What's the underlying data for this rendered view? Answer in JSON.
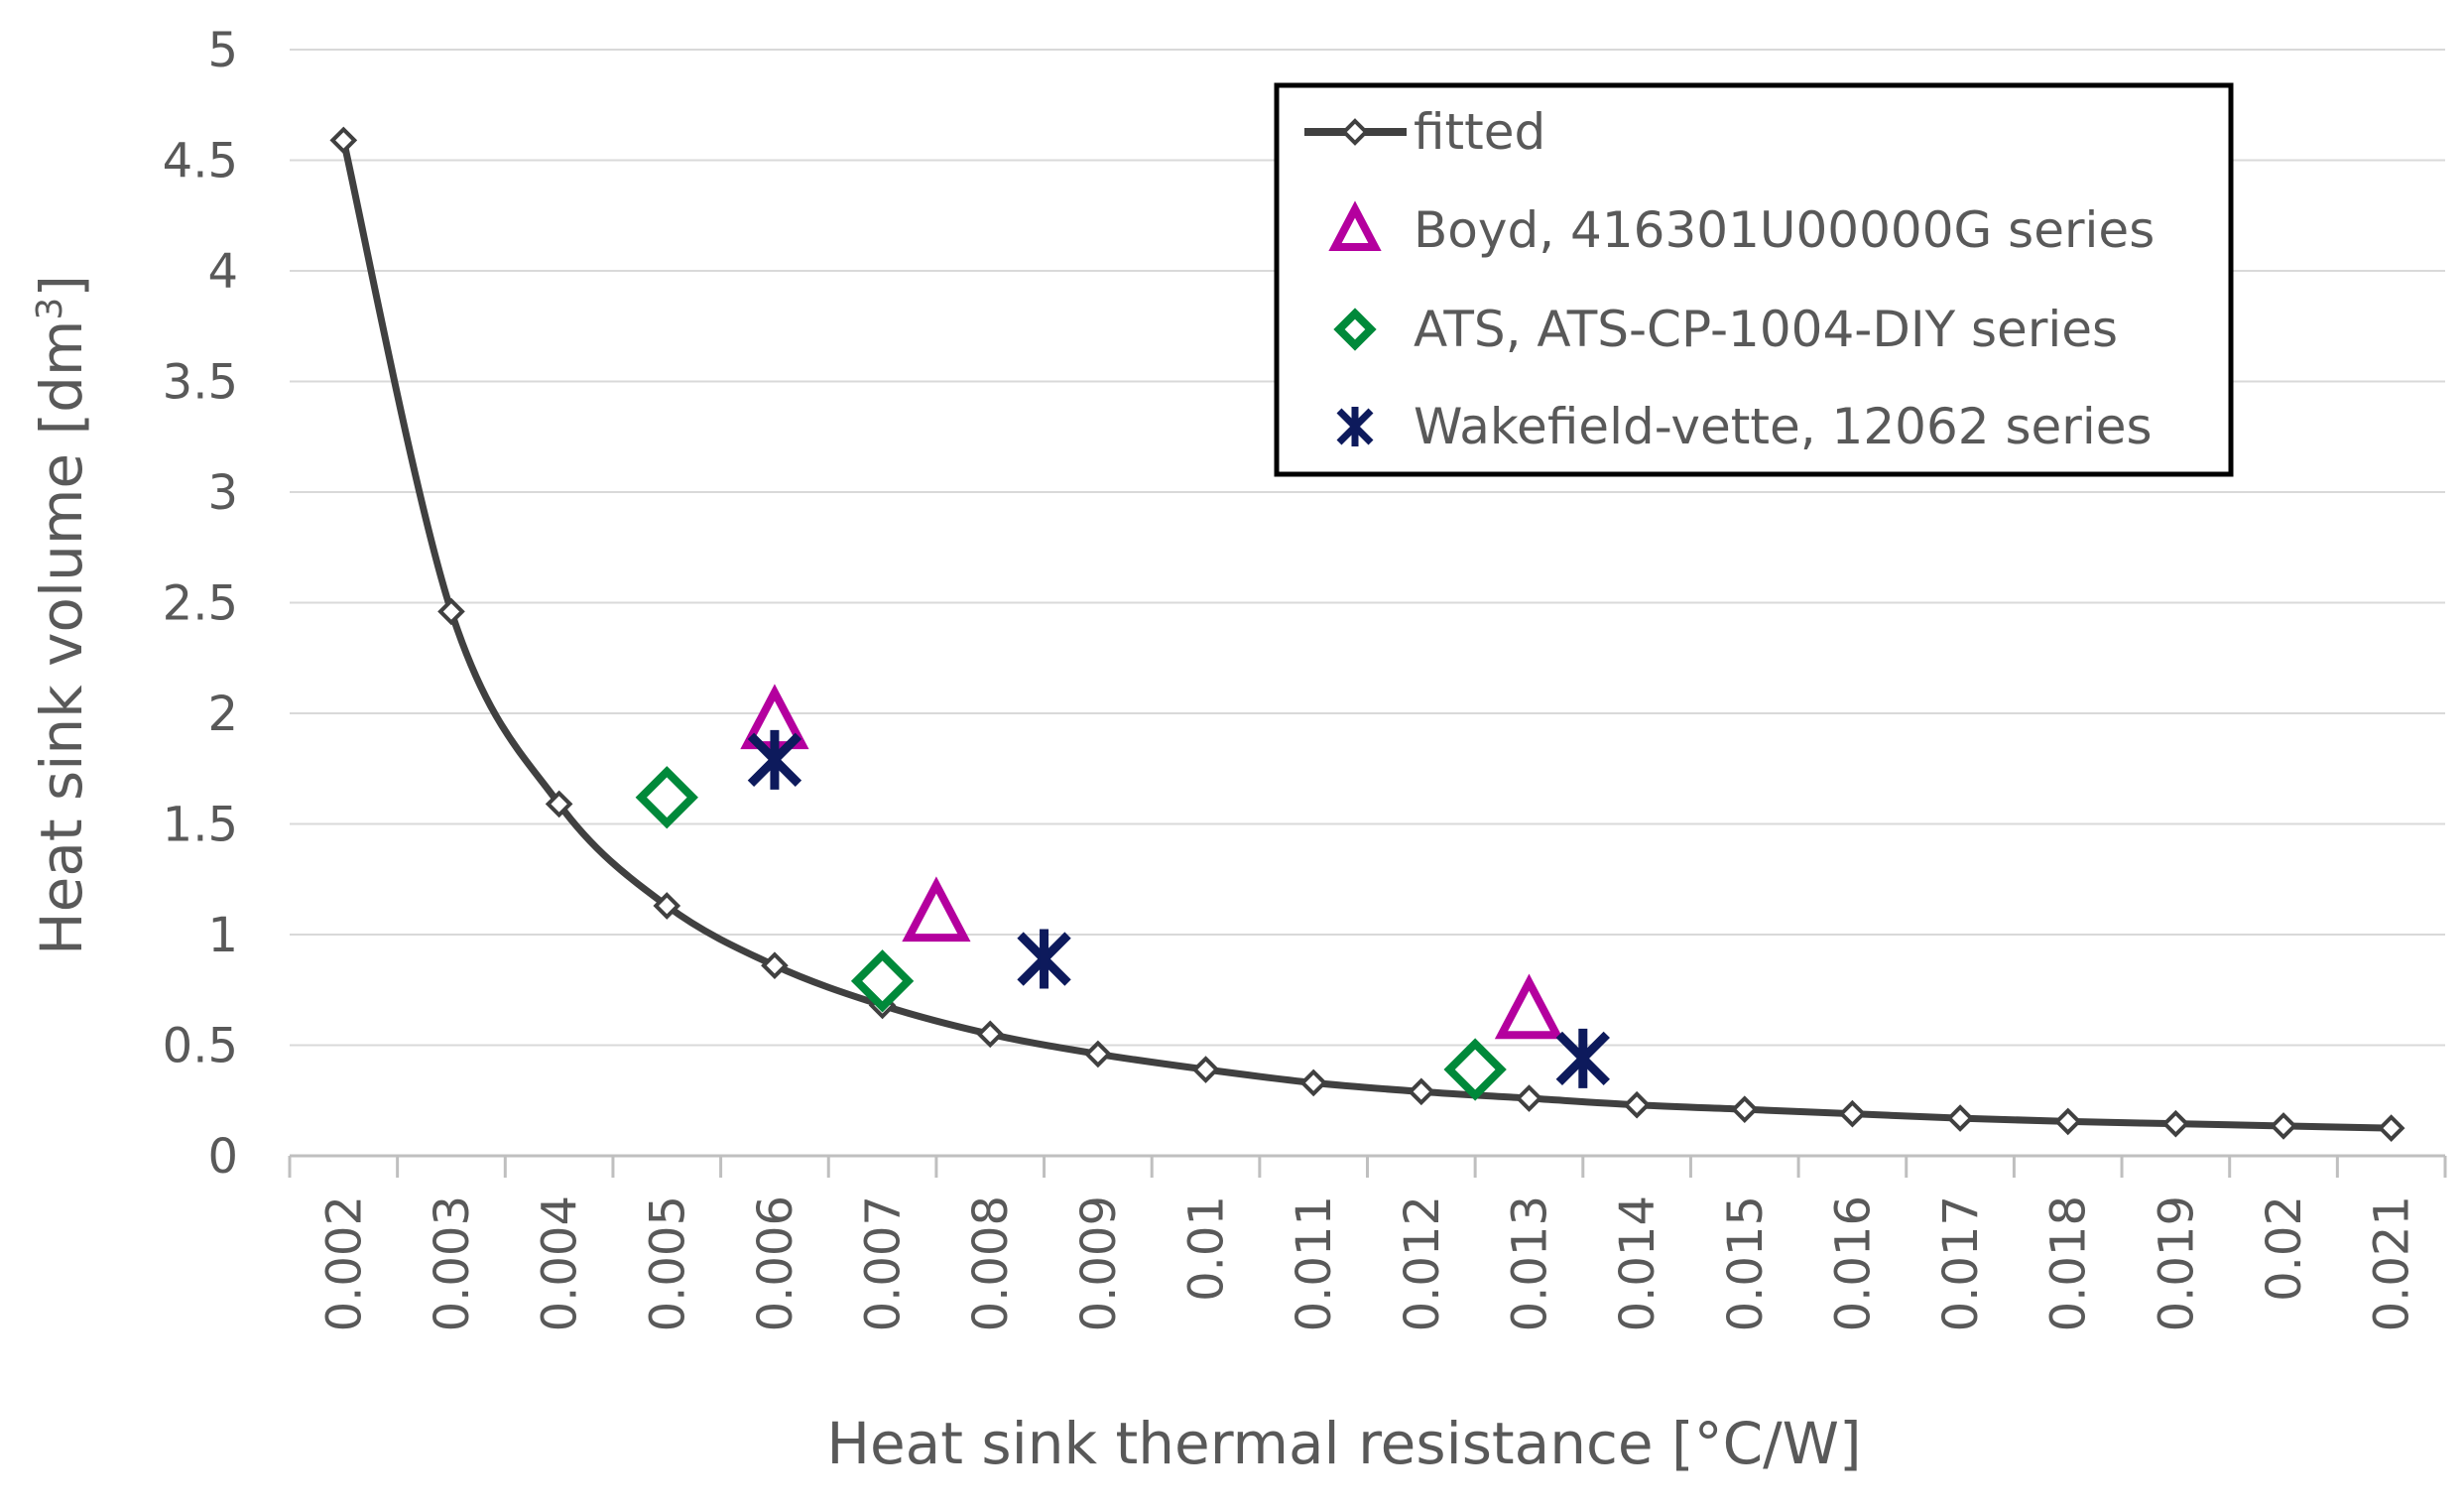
{
  "chart_data": {
    "type": "line",
    "title": "",
    "xlabel": "Heat sink thermal resistance [°C/W]",
    "ylabel_main": "Heat sink volume [dm",
    "ylabel_sup": "3",
    "ylabel_close": "]",
    "categories": [
      "0.002",
      "0.003",
      "0.004",
      "0.005",
      "0.006",
      "0.007",
      "0.008",
      "0.009",
      "0.01",
      "0.011",
      "0.012",
      "0.013",
      "0.014",
      "0.015",
      "0.016",
      "0.017",
      "0.018",
      "0.019",
      "0.02",
      "0.021"
    ],
    "y_ticks": [
      "0",
      "0.5",
      "1",
      "1.5",
      "2",
      "2.5",
      "3",
      "3.5",
      "4",
      "4.5",
      "5"
    ],
    "ylim": [
      0,
      5
    ],
    "xlim": [
      0.0015,
      0.0215
    ],
    "grid": true,
    "legend_position": "top-right",
    "series": [
      {
        "name": "fitted",
        "marker": "diamond-small",
        "color": "#404040",
        "x": [
          0.002,
          0.003,
          0.004,
          0.005,
          0.006,
          0.007,
          0.008,
          0.009,
          0.01,
          0.011,
          0.012,
          0.013,
          0.014,
          0.015,
          0.016,
          0.017,
          0.018,
          0.019,
          0.02,
          0.021
        ],
        "y": [
          4.59,
          2.46,
          1.59,
          1.13,
          0.86,
          0.68,
          0.55,
          0.46,
          0.39,
          0.33,
          0.29,
          0.26,
          0.23,
          0.21,
          0.19,
          0.17,
          0.155,
          0.145,
          0.135,
          0.125
        ]
      },
      {
        "name": "Boyd, 416301U00000G series",
        "marker": "triangle",
        "color": "#B4009E",
        "x": [
          0.006,
          0.0075,
          0.013
        ],
        "y": [
          1.95,
          1.08,
          0.64
        ]
      },
      {
        "name": "ATS, ATS-CP-1004-DIY series",
        "marker": "diamond",
        "color": "#00893A",
        "x": [
          0.005,
          0.007,
          0.0125
        ],
        "y": [
          1.62,
          0.79,
          0.39
        ]
      },
      {
        "name": "Wakefield-vette, 12062 series",
        "marker": "asterisk",
        "color": "#0D1A5C",
        "x": [
          0.006,
          0.0085,
          0.0135
        ],
        "y": [
          1.79,
          0.89,
          0.44
        ]
      }
    ]
  }
}
